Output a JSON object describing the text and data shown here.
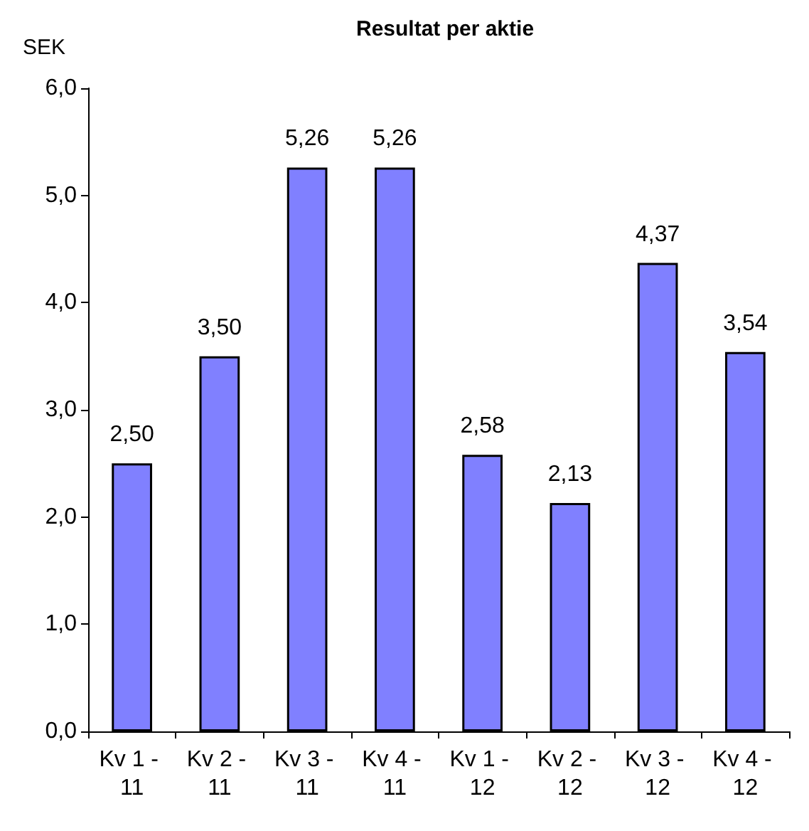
{
  "chart_data": {
    "type": "bar",
    "title": "Resultat per aktie",
    "ylabel": "SEK",
    "categories": [
      "Kv 1 - 11",
      "Kv 2 - 11",
      "Kv 3 - 11",
      "Kv 4 - 11",
      "Kv 1 - 12",
      "Kv 2 - 12",
      "Kv 3 - 12",
      "Kv 4 - 12"
    ],
    "values": [
      2.5,
      3.5,
      5.26,
      5.26,
      2.58,
      2.13,
      4.37,
      3.54
    ],
    "value_labels": [
      "2,50",
      "3,50",
      "5,26",
      "5,26",
      "2,58",
      "2,13",
      "4,37",
      "3,54"
    ],
    "color": "#8080ff",
    "ylim": [
      0,
      6
    ],
    "yticks": [
      {
        "value": 0,
        "label": "0,0"
      },
      {
        "value": 1,
        "label": "1,0"
      },
      {
        "value": 2,
        "label": "2,0"
      },
      {
        "value": 3,
        "label": "3,0"
      },
      {
        "value": 4,
        "label": "4,0"
      },
      {
        "value": 5,
        "label": "5,0"
      },
      {
        "value": 6,
        "label": "6,0"
      }
    ],
    "grid": false
  }
}
